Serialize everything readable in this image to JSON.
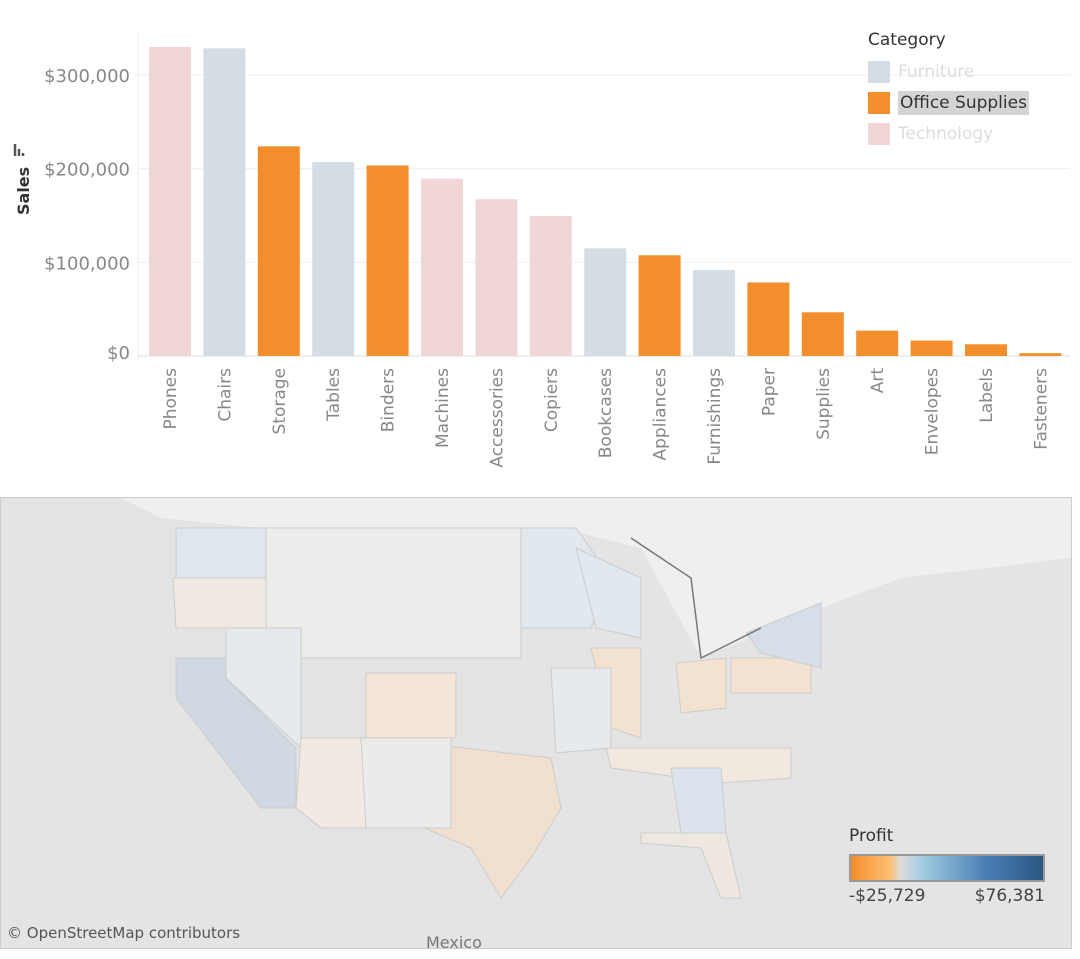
{
  "chart_data": {
    "type": "bar",
    "ylabel": "Sales",
    "ylim": [
      0,
      340000
    ],
    "yticks": [
      "$0",
      "$100,000",
      "$200,000",
      "$300,000"
    ],
    "ytick_values": [
      0,
      100000,
      200000,
      300000
    ],
    "grid": true,
    "categories": [
      "Phones",
      "Chairs",
      "Storage",
      "Tables",
      "Binders",
      "Machines",
      "Accessories",
      "Copiers",
      "Bookcases",
      "Appliances",
      "Furnishings",
      "Paper",
      "Supplies",
      "Art",
      "Envelopes",
      "Labels",
      "Fasteners"
    ],
    "values": [
      330007,
      328449,
      223844,
      206966,
      203413,
      189239,
      167380,
      149528,
      114880,
      107532,
      91705,
      78479,
      46674,
      27119,
      16476,
      12486,
      3024
    ],
    "category_of": [
      "Technology",
      "Furniture",
      "Office Supplies",
      "Furniture",
      "Office Supplies",
      "Technology",
      "Technology",
      "Technology",
      "Furniture",
      "Office Supplies",
      "Furniture",
      "Office Supplies",
      "Office Supplies",
      "Office Supplies",
      "Office Supplies",
      "Office Supplies",
      "Office Supplies"
    ],
    "legend": {
      "title": "Category",
      "placement": "top-right",
      "items": [
        {
          "label": "Furniture",
          "color": "#d5dde4"
        },
        {
          "label": "Office Supplies",
          "color": "#f28e2b",
          "selected": true
        },
        {
          "label": "Technology",
          "color": "#f1d6d8"
        }
      ]
    }
  },
  "map": {
    "attribution": "© OpenStreetMap contributors",
    "country_label": "Mexico",
    "legend": {
      "title": "Profit",
      "min": "-$25,729",
      "max": "$76,381"
    }
  }
}
